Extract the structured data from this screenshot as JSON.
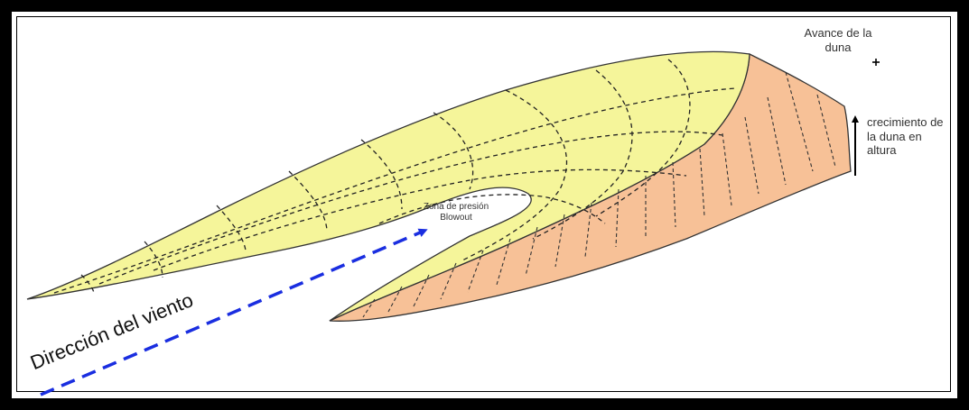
{
  "labels": {
    "dune_advance": "Avance de la duna",
    "dune_growth": "crecimiento de la duna en altura",
    "blowout_zone": "Zona de presión Blowout",
    "wind_direction": "Dirección del viento"
  },
  "colors": {
    "frame": "#000000",
    "windward_slope": "#f5f59a",
    "slip_face": "#f7c197",
    "wind_arrow": "#1a2ee0",
    "contour_lines": "#222222"
  },
  "icons": {
    "advance_arrow": "plus-arrow-icon",
    "growth_arrow": "up-arrow-icon",
    "wind_arrow": "dashed-arrow-icon"
  }
}
